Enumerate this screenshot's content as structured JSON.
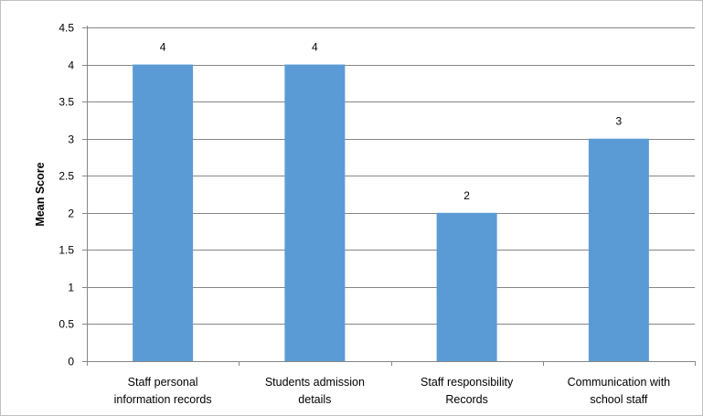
{
  "chart_data": {
    "type": "bar",
    "categories": [
      [
        "Staff personal",
        "information records"
      ],
      [
        "Students admission",
        "details"
      ],
      [
        "Staff responsibility",
        "Records"
      ],
      [
        "Communication with",
        "school staff"
      ]
    ],
    "values": [
      4,
      4,
      2,
      3
    ],
    "data_labels": [
      "4",
      "4",
      "2",
      "3"
    ],
    "title": "",
    "xlabel": "",
    "ylabel": "Mean Score",
    "ylim": [
      0,
      4.5
    ],
    "yticks": [
      "0",
      "0.5",
      "1",
      "1.5",
      "2",
      "2.5",
      "3",
      "3.5",
      "4",
      "4.5"
    ],
    "grid": true,
    "legend": "none",
    "colors": {
      "bar": "#5b9bd5",
      "grid": "#868686",
      "axis": "#868686"
    }
  }
}
